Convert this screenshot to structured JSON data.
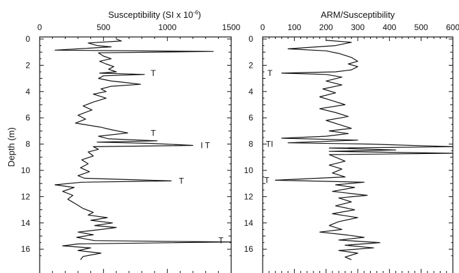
{
  "chart_data": [
    {
      "type": "line",
      "title": "Susceptibility (SI x 10",
      "title_superscript": "-6",
      "title_suffix": ")",
      "xlabel": "Susceptibility (SI x 10^-6)",
      "ylabel": "Depth (m)",
      "xlim": [
        0,
        1500
      ],
      "ylim": [
        0,
        16.8
      ],
      "x_ticks": [
        0,
        500,
        1000,
        1500
      ],
      "y_ticks": [
        0,
        2,
        4,
        6,
        8,
        10,
        12,
        14,
        16
      ],
      "series": [
        {
          "points": [
            [
              600,
              0
            ],
            [
              640,
              0.15
            ],
            [
              380,
              0.3
            ],
            [
              450,
              0.5
            ],
            [
              560,
              0.6
            ],
            [
              300,
              0.75
            ],
            [
              120,
              0.85
            ],
            [
              1360,
              0.95
            ],
            [
              460,
              1.05
            ],
            [
              500,
              1.3
            ],
            [
              560,
              1.5
            ],
            [
              470,
              1.7
            ],
            [
              520,
              1.9
            ],
            [
              580,
              2.1
            ],
            [
              540,
              2.3
            ],
            [
              600,
              2.5
            ],
            [
              470,
              2.6
            ],
            [
              820,
              2.7
            ],
            [
              500,
              2.8
            ],
            [
              460,
              3.0
            ],
            [
              560,
              3.2
            ],
            [
              660,
              3.3
            ],
            [
              790,
              3.45
            ],
            [
              560,
              3.6
            ],
            [
              480,
              3.8
            ],
            [
              520,
              4.0
            ],
            [
              420,
              4.2
            ],
            [
              520,
              4.5
            ],
            [
              420,
              4.8
            ],
            [
              340,
              5.1
            ],
            [
              410,
              5.4
            ],
            [
              300,
              5.8
            ],
            [
              360,
              6.1
            ],
            [
              280,
              6.4
            ],
            [
              470,
              6.7
            ],
            [
              560,
              6.9
            ],
            [
              690,
              7.15
            ],
            [
              460,
              7.4
            ],
            [
              540,
              7.6
            ],
            [
              920,
              7.75
            ],
            [
              450,
              7.85
            ],
            [
              880,
              7.95
            ],
            [
              1200,
              8.1
            ],
            [
              420,
              8.2
            ],
            [
              460,
              8.4
            ],
            [
              380,
              8.6
            ],
            [
              420,
              8.9
            ],
            [
              330,
              9.2
            ],
            [
              380,
              9.5
            ],
            [
              320,
              9.8
            ],
            [
              390,
              10.1
            ],
            [
              300,
              10.4
            ],
            [
              350,
              10.6
            ],
            [
              1030,
              10.8
            ],
            [
              330,
              10.9
            ],
            [
              120,
              11.1
            ],
            [
              270,
              11.3
            ],
            [
              180,
              11.6
            ],
            [
              260,
              11.9
            ],
            [
              220,
              12.2
            ],
            [
              290,
              12.6
            ],
            [
              340,
              12.9
            ],
            [
              420,
              13.2
            ],
            [
              380,
              13.4
            ],
            [
              530,
              13.6
            ],
            [
              400,
              13.8
            ],
            [
              570,
              14.0
            ],
            [
              430,
              14.2
            ],
            [
              600,
              14.35
            ],
            [
              480,
              14.5
            ],
            [
              300,
              14.7
            ],
            [
              420,
              14.9
            ],
            [
              290,
              15.1
            ],
            [
              430,
              15.35
            ],
            [
              1500,
              15.45
            ],
            [
              300,
              15.6
            ],
            [
              180,
              15.75
            ],
            [
              400,
              15.9
            ],
            [
              300,
              16.1
            ],
            [
              480,
              16.3
            ],
            [
              340,
              16.55
            ],
            [
              320,
              16.8
            ]
          ]
        }
      ],
      "annotations": [
        {
          "text": "T",
          "x": 870,
          "y": 2.6
        },
        {
          "text": "T",
          "x": 870,
          "y": 7.15
        },
        {
          "text": "I T",
          "x": 1260,
          "y": 8.1
        },
        {
          "text": "T",
          "x": 1090,
          "y": 10.8
        },
        {
          "text": "T",
          "x": 1400,
          "y": 15.35
        }
      ]
    },
    {
      "type": "line",
      "title": "ARM/Susceptibility",
      "xlabel": "ARM/Susceptibility",
      "ylabel": "",
      "xlim": [
        0,
        600
      ],
      "ylim": [
        0,
        16.8
      ],
      "x_ticks": [
        0,
        100,
        200,
        300,
        400,
        500,
        600
      ],
      "y_ticks": [
        0,
        2,
        4,
        6,
        8,
        10,
        12,
        14,
        16
      ],
      "series": [
        {
          "points": [
            [
              200,
              0.1
            ],
            [
              280,
              0.25
            ],
            [
              230,
              0.5
            ],
            [
              80,
              0.75
            ],
            [
              200,
              0.9
            ],
            [
              240,
              1.1
            ],
            [
              280,
              1.4
            ],
            [
              300,
              1.7
            ],
            [
              270,
              1.9
            ],
            [
              300,
              2.1
            ],
            [
              280,
              2.35
            ],
            [
              230,
              2.5
            ],
            [
              60,
              2.6
            ],
            [
              200,
              2.7
            ],
            [
              250,
              2.9
            ],
            [
              200,
              3.2
            ],
            [
              250,
              3.5
            ],
            [
              190,
              3.8
            ],
            [
              230,
              4.1
            ],
            [
              180,
              4.4
            ],
            [
              220,
              4.7
            ],
            [
              260,
              5.0
            ],
            [
              180,
              5.3
            ],
            [
              230,
              5.6
            ],
            [
              270,
              5.9
            ],
            [
              200,
              6.2
            ],
            [
              240,
              6.5
            ],
            [
              280,
              6.8
            ],
            [
              210,
              7.0
            ],
            [
              270,
              7.2
            ],
            [
              200,
              7.4
            ],
            [
              60,
              7.55
            ],
            [
              300,
              7.7
            ],
            [
              80,
              7.9
            ],
            [
              340,
              8.0
            ],
            [
              600,
              8.2
            ],
            [
              210,
              8.3
            ],
            [
              420,
              8.45
            ],
            [
              210,
              8.55
            ],
            [
              600,
              8.7
            ],
            [
              210,
              8.8
            ],
            [
              230,
              9.0
            ],
            [
              260,
              9.3
            ],
            [
              210,
              9.6
            ],
            [
              250,
              9.9
            ],
            [
              220,
              10.2
            ],
            [
              260,
              10.5
            ],
            [
              40,
              10.75
            ],
            [
              320,
              10.9
            ],
            [
              230,
              11.1
            ],
            [
              290,
              11.3
            ],
            [
              220,
              11.6
            ],
            [
              330,
              11.9
            ],
            [
              240,
              12.1
            ],
            [
              280,
              12.4
            ],
            [
              230,
              12.7
            ],
            [
              290,
              13.0
            ],
            [
              220,
              13.3
            ],
            [
              300,
              13.6
            ],
            [
              240,
              13.9
            ],
            [
              210,
              14.2
            ],
            [
              250,
              14.5
            ],
            [
              180,
              14.7
            ],
            [
              260,
              14.9
            ],
            [
              320,
              15.1
            ],
            [
              240,
              15.3
            ],
            [
              370,
              15.5
            ],
            [
              260,
              15.7
            ],
            [
              350,
              15.9
            ],
            [
              240,
              16.1
            ],
            [
              300,
              16.3
            ],
            [
              260,
              16.6
            ],
            [
              280,
              16.8
            ]
          ]
        }
      ],
      "annotations": [
        {
          "text": "T",
          "x": 15,
          "y": 2.6
        },
        {
          "text": "TI",
          "x": 10,
          "y": 8.0
        },
        {
          "text": "T",
          "x": 5,
          "y": 10.75
        }
      ]
    }
  ]
}
